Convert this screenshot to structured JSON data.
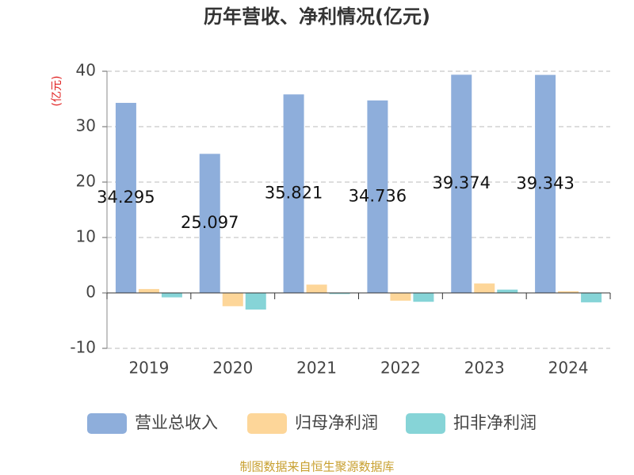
{
  "chart_data": {
    "type": "bar",
    "title": "历年营收、净利情况(亿元)",
    "y_axis_label": "(亿元)",
    "source": "制图数据来自恒生聚源数据库",
    "categories": [
      "2019",
      "2020",
      "2021",
      "2022",
      "2023",
      "2024"
    ],
    "series": [
      {
        "name": "营业总收入",
        "color": "#8eaedb",
        "labels": true,
        "values": [
          34.295,
          25.097,
          35.821,
          34.736,
          39.374,
          39.343
        ]
      },
      {
        "name": "归母净利润",
        "color": "#fdd699",
        "values": [
          0.7,
          -2.4,
          1.5,
          -1.4,
          1.7,
          0.3
        ]
      },
      {
        "name": "扣非净利润",
        "color": "#86d4d7",
        "values": [
          -0.8,
          -3.0,
          -0.2,
          -1.6,
          0.6,
          -1.7
        ]
      }
    ],
    "ylim": [
      -10,
      40
    ],
    "yticks": [
      -10,
      0,
      10,
      20,
      30,
      40
    ],
    "grid": true,
    "legend": "bottom"
  }
}
